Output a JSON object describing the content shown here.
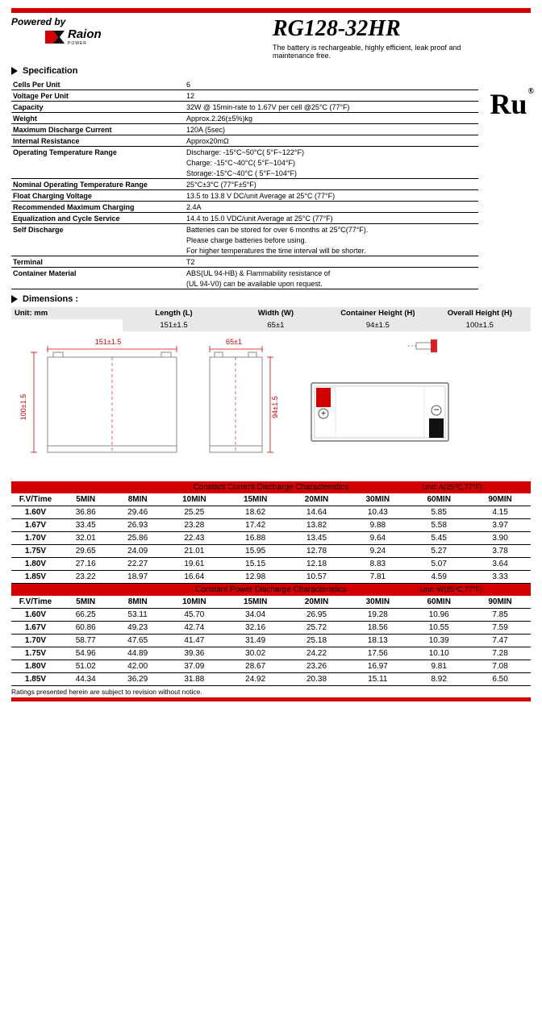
{
  "header": {
    "powered_by": "Powered by",
    "logo_text": "Raion",
    "logo_sub": "POWER",
    "model": "RG128-32HR",
    "tagline": "The battery is rechargeable, highly efficient, leak proof and maintenance free."
  },
  "spec_title": "Specification",
  "specs": [
    {
      "label": "Cells Per Unit",
      "value": "6"
    },
    {
      "label": "Voltage Per Unit",
      "value": "12"
    },
    {
      "label": "Capacity",
      "value": "32W @ 15min-rate to 1.67V per cell @25°C (77°F)"
    },
    {
      "label": "Weight",
      "value": "Approx.2.26(±5%)kg"
    },
    {
      "label": "Maximum Discharge Current",
      "value": "120A (5sec)"
    },
    {
      "label": "Internal Resistance",
      "value": "Approx20mΩ"
    },
    {
      "label": "Operating Temperature Range",
      "value": "Discharge: -15°C~50°C( 5°F~122°F)\nCharge: -15°C~40°C( 5°F~104°F)\nStorage:-15°C~40°C ( 5°F~104°F)"
    },
    {
      "label": "Nominal Operating Temperature Range",
      "value": "25°C±3°C (77°F±5°F)"
    },
    {
      "label": "Float Charging Voltage",
      "value": "13.5 to 13.8 V DC/unit Average at 25°C (77°F)"
    },
    {
      "label": "Recommended Maximum Charging",
      "value": "2.4A"
    },
    {
      "label": "Equalization and Cycle Service",
      "value": "14.4 to 15.0 VDC/unit Average at 25°C (77°F)"
    },
    {
      "label": "Self Discharge",
      "value": "Batteries can be stored for over 6 months at 25°C(77°F).\nPlease charge batteries before using.\nFor higher temperatures the time interval will be shorter."
    },
    {
      "label": "Terminal",
      "value": "T2"
    },
    {
      "label": "Container Material",
      "value": "ABS(UL 94-HB) & Flammability resistance of\n(UL 94-V0) can be available upon request."
    }
  ],
  "ul_mark": "Ru",
  "dimensions": {
    "title": "Dimensions :",
    "unit": "Unit: mm",
    "headers": [
      "Length (L)",
      "Width (W)",
      "Container Height (H)",
      "Overall Height (H)"
    ],
    "values": [
      "151±1.5",
      "65±1",
      "94±1.5",
      "100±1.5"
    ]
  },
  "drawing_labels": {
    "length": "151±1.5",
    "width": "65±1",
    "c_height": "94±1.5",
    "o_height": "100±1.5"
  },
  "table1": {
    "title": "Constant Current Discharge Characteristics",
    "unit": "Unit: A(25℃,77°F)",
    "columns": [
      "F.V/Time",
      "5MIN",
      "8MIN",
      "10MIN",
      "15MIN",
      "20MIN",
      "30MIN",
      "60MIN",
      "90MIN"
    ],
    "rows": [
      [
        "1.60V",
        "36.86",
        "29.46",
        "25.25",
        "18.62",
        "14.64",
        "10.43",
        "5.85",
        "4.15"
      ],
      [
        "1.67V",
        "33.45",
        "26.93",
        "23.28",
        "17.42",
        "13.82",
        "9.88",
        "5.58",
        "3.97"
      ],
      [
        "1.70V",
        "32.01",
        "25.86",
        "22.43",
        "16.88",
        "13.45",
        "9.64",
        "5.45",
        "3.90"
      ],
      [
        "1.75V",
        "29.65",
        "24.09",
        "21.01",
        "15.95",
        "12.78",
        "9.24",
        "5.27",
        "3.78"
      ],
      [
        "1.80V",
        "27.16",
        "22.27",
        "19.61",
        "15.15",
        "12.18",
        "8.83",
        "5.07",
        "3.64"
      ],
      [
        "1.85V",
        "23.22",
        "18.97",
        "16.64",
        "12.98",
        "10.57",
        "7.81",
        "4.59",
        "3.33"
      ]
    ]
  },
  "table2": {
    "title": "Constant Power Discharge Characteristics",
    "unit": "Unit: W(25℃,77°F)",
    "columns": [
      "F.V/Time",
      "5MIN",
      "8MIN",
      "10MIN",
      "15MIN",
      "20MIN",
      "30MIN",
      "60MIN",
      "90MIN"
    ],
    "rows": [
      [
        "1.60V",
        "66.25",
        "53.11",
        "45.70",
        "34.04",
        "26.95",
        "19.28",
        "10.96",
        "7.85"
      ],
      [
        "1.67V",
        "60.86",
        "49.23",
        "42.74",
        "32.16",
        "25.72",
        "18.56",
        "10.55",
        "7.59"
      ],
      [
        "1.70V",
        "58.77",
        "47.65",
        "41.47",
        "31.49",
        "25.18",
        "18.13",
        "10.39",
        "7.47"
      ],
      [
        "1.75V",
        "54.96",
        "44.89",
        "39.36",
        "30.02",
        "24.22",
        "17.56",
        "10.10",
        "7.28"
      ],
      [
        "1.80V",
        "51.02",
        "42.00",
        "37.09",
        "28.67",
        "23.26",
        "16.97",
        "9.81",
        "7.08"
      ],
      [
        "1.85V",
        "44.34",
        "36.29",
        "31.88",
        "24.92",
        "20.38",
        "15.11",
        "8.92",
        "6.50"
      ]
    ]
  },
  "footnote": "Ratings presented herein are subject to revision without notice.",
  "colors": {
    "red": "#d40000",
    "gray_bg": "#e8e8e8"
  }
}
